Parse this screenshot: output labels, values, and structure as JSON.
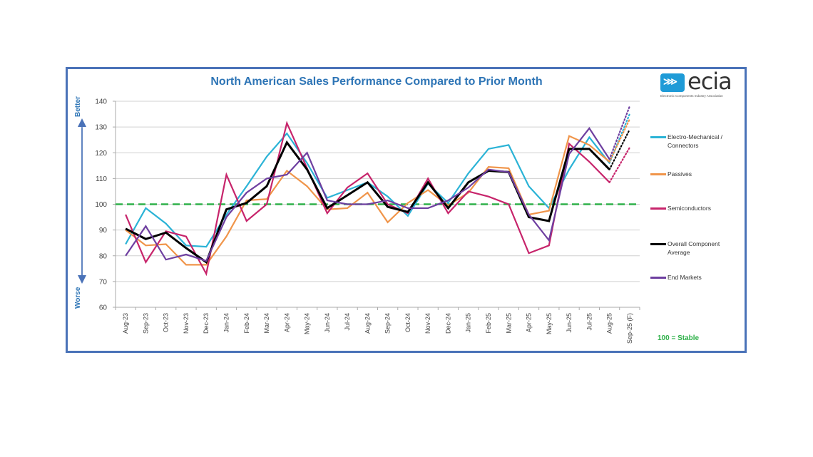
{
  "logo": {
    "mark": "ecia",
    "text": "ecia",
    "subtitle": "Electronic Components Industry Association"
  },
  "side_labels": {
    "top": "Better",
    "bottom": "Worse"
  },
  "stable_note": "100 = Stable",
  "chart_data": {
    "type": "line",
    "title": "North American Sales Performance Compared to Prior Month",
    "xlabel": "",
    "ylabel": "",
    "ylim": [
      60,
      140
    ],
    "yticks": [
      60,
      70,
      80,
      90,
      100,
      110,
      120,
      130,
      140
    ],
    "grid": true,
    "legend_position": "right",
    "reference_line": {
      "value": 100,
      "label": "100 = Stable",
      "style": "dashed",
      "color": "#2fb14a"
    },
    "categories": [
      "Aug-23",
      "Sep-23",
      "Oct-23",
      "Nov-23",
      "Dec-23",
      "Jan-24",
      "Feb-24",
      "Mar-24",
      "Apr-24",
      "May-24",
      "Jun-24",
      "Jul-24",
      "Aug-24",
      "Sep-24",
      "Oct-24",
      "Nov-24",
      "Dec-24",
      "Jan-25",
      "Feb-25",
      "Mar-25",
      "Apr-25",
      "May-25",
      "Jun-25",
      "Jul-25",
      "Aug-25",
      "Sep-25 (F)"
    ],
    "forecast_index": 25,
    "series": [
      {
        "name": "Electro-Mechanical / Connectors",
        "color": "#2bb3d6",
        "values": [
          84.5,
          98.5,
          92.5,
          84,
          83.5,
          96,
          107,
          118.5,
          127.5,
          116,
          102.5,
          105.5,
          108.5,
          103,
          95.5,
          108,
          100.5,
          112,
          121.5,
          123,
          107,
          98.5,
          113.5,
          126,
          116,
          135
        ]
      },
      {
        "name": "Passives",
        "color": "#f0954a",
        "values": [
          90,
          84,
          84.5,
          76.5,
          76.5,
          87.5,
          101.5,
          102,
          113,
          107,
          98,
          98.5,
          104.5,
          93,
          100.5,
          105.5,
          99.5,
          104.5,
          114.5,
          114,
          96,
          97.5,
          126.5,
          123,
          116.5,
          133
        ]
      },
      {
        "name": "Semiconductors",
        "color": "#c7246b",
        "values": [
          96,
          77.5,
          89.5,
          87.5,
          73,
          111.5,
          93.5,
          100,
          131.5,
          114,
          96.5,
          106.5,
          112,
          100,
          96.5,
          110,
          96.5,
          105,
          103,
          100,
          81,
          84,
          123.5,
          116.5,
          108.5,
          122
        ]
      },
      {
        "name": "Overall Component Average",
        "color": "#000000",
        "values": [
          90.5,
          86.5,
          89,
          83,
          77.5,
          98,
          100.5,
          107,
          124,
          113.5,
          98.5,
          103.5,
          108.5,
          99,
          97,
          108.5,
          98.5,
          108.5,
          113,
          112.5,
          95,
          93.5,
          121.5,
          121.5,
          113.5,
          129
        ]
      },
      {
        "name": "End Markets",
        "color": "#6e3fa0",
        "values": [
          80,
          91.5,
          78.5,
          80.5,
          78,
          95,
          104.5,
          110,
          111.5,
          120,
          101.5,
          100,
          100,
          101.5,
          98.5,
          98.5,
          101.5,
          106.5,
          113.5,
          112.5,
          96,
          86,
          119.5,
          129.5,
          117.5,
          138
        ]
      }
    ]
  }
}
